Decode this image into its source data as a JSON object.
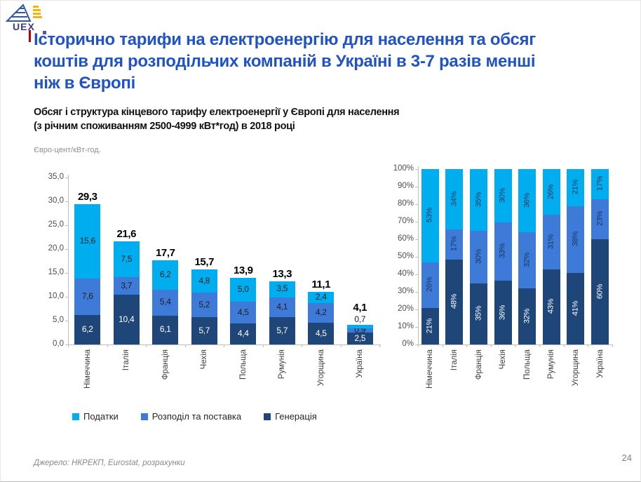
{
  "slide": {
    "page_number": "24",
    "source": "Джерело:  НКРЕКП, Eurostat, розрахунки",
    "logo_text": "UEX"
  },
  "header": {
    "title_lines": [
      "Історично тарифи на електроенергію для населення та обсяг",
      "коштів для розподільчих компаній  в Україні в 3-7 разів менші",
      "ніж в Європі"
    ],
    "subtitle_lines": [
      "Обсяг і структура кінцевого тарифу електроенергії у Європі для населення",
      "(з річним споживанням 2500-4999 кВт*год) в 2018 році"
    ],
    "title_color": "#2052C8",
    "accent_color": "#C00000"
  },
  "legend": {
    "items": [
      {
        "label": "Податки",
        "color": "#00AEEF"
      },
      {
        "label": "Розподіл та поставка",
        "color": "#3E7AD8"
      },
      {
        "label": "Генерація",
        "color": "#1E4679"
      }
    ]
  },
  "chart_data": [
    {
      "type": "bar",
      "stacked": true,
      "percent": false,
      "unit_label": "Євро-цент/кВт-год.",
      "ylabel": "Євро-цент/кВт-год.",
      "ylim": [
        0,
        35
      ],
      "ytick_labels": [
        "35,0",
        "30,0",
        "25,0",
        "20,0",
        "15,0",
        "10,0",
        "5,0",
        "0,0"
      ],
      "label_format": "fixed1",
      "categories": [
        "Німеччина",
        "Італія",
        "Франція",
        "Чехія",
        "Польща",
        "Румунія",
        "Угорщина",
        "Україна"
      ],
      "series": [
        {
          "name": "Генерація",
          "color": "#1E4679",
          "label_color": "#FFFFFF",
          "values": [
            6.2,
            10.4,
            6.1,
            5.7,
            4.4,
            5.7,
            4.5,
            2.5
          ]
        },
        {
          "name": "Розподіл та поставка",
          "color": "#3E7AD8",
          "label_color": "#1f1f1f",
          "values": [
            7.6,
            3.7,
            5.4,
            5.2,
            4.5,
            4.1,
            4.2,
            0.9
          ]
        },
        {
          "name": "Податки",
          "color": "#00AEEF",
          "label_color": "#1f1f1f",
          "values": [
            15.6,
            7.5,
            6.2,
            4.8,
            5.0,
            3.5,
            2.4,
            0.7
          ]
        }
      ],
      "totals": [
        29.3,
        21.6,
        17.7,
        15.7,
        13.9,
        13.3,
        11.1,
        4.1
      ]
    },
    {
      "type": "bar",
      "stacked": true,
      "percent": true,
      "ylim": [
        0,
        100
      ],
      "ytick_labels": [
        "100%",
        "90%",
        "80%",
        "70%",
        "60%",
        "50%",
        "40%",
        "30%",
        "20%",
        "10%",
        "0%"
      ],
      "label_format": "percent",
      "categories": [
        "Німеччина",
        "Італія",
        "Франція",
        "Чехія",
        "Польща",
        "Румунія",
        "Угорщина",
        "Україна"
      ],
      "series": [
        {
          "name": "Генерація",
          "color": "#1E4679",
          "label_color": "#FFFFFF",
          "values": [
            21,
            48,
            35,
            36,
            32,
            43,
            41,
            60
          ]
        },
        {
          "name": "Розподіл та поставка",
          "color": "#3E7AD8",
          "label_color": "#17365D",
          "values": [
            26,
            17,
            30,
            33,
            32,
            31,
            38,
            23
          ]
        },
        {
          "name": "Податки",
          "color": "#00AEEF",
          "label_color": "#17365D",
          "values": [
            53,
            34,
            35,
            30,
            36,
            26,
            21,
            17
          ]
        }
      ]
    }
  ]
}
